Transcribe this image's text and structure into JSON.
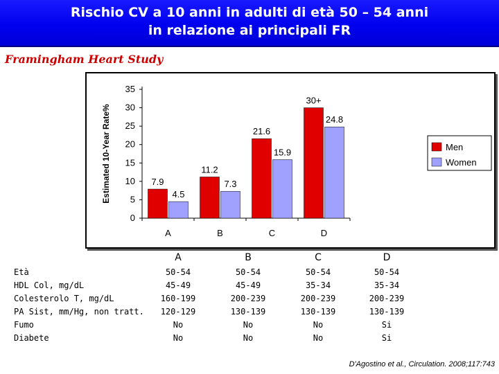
{
  "header": {
    "title_line1": "Rischio CV a 10 anni in adulti di età 50 – 54 anni",
    "title_line2": "in relazione ai principali FR"
  },
  "subtitle": "Framingham Heart Study",
  "chart_data": {
    "type": "bar",
    "ylabel": "Estimated 10-Year Rate%",
    "ylim": [
      0,
      35
    ],
    "yticks": [
      0,
      5,
      10,
      15,
      20,
      25,
      30,
      35
    ],
    "categories": [
      "A",
      "B",
      "C",
      "D"
    ],
    "grid": false,
    "legend_position": "right",
    "series": [
      {
        "name": "Men",
        "color": "#e00000",
        "values": [
          7.9,
          11.2,
          21.6,
          30
        ],
        "labels": [
          "7.9",
          "11.2",
          "21.6",
          "30+"
        ]
      },
      {
        "name": "Women",
        "color": "#a0a0ff",
        "values": [
          4.5,
          7.3,
          15.9,
          24.8
        ],
        "labels": [
          "4.5",
          "7.3",
          "15.9",
          "24.8"
        ]
      }
    ]
  },
  "table": {
    "columns": [
      "A",
      "B",
      "C",
      "D"
    ],
    "rows": [
      {
        "label": "Età",
        "values": [
          "50-54",
          "50-54",
          "50-54",
          "50-54"
        ]
      },
      {
        "label": "HDL Col, mg/dL",
        "values": [
          "45-49",
          "45-49",
          "35-34",
          "35-34"
        ]
      },
      {
        "label": "Colesterolo T, mg/dL",
        "values": [
          "160-199",
          "200-239",
          "200-239",
          "200-239"
        ]
      },
      {
        "label": "PA Sist, mm/Hg, non tratt.",
        "values": [
          "120-129",
          "130-139",
          "130-139",
          "130-139"
        ]
      },
      {
        "label": "Fumo",
        "values": [
          "No",
          "No",
          "No",
          "Si"
        ]
      },
      {
        "label": "Diabete",
        "values": [
          "No",
          "No",
          "No",
          "Si"
        ]
      }
    ]
  },
  "citation": "D'Agostino et al., Circulation. 2008;117:743"
}
